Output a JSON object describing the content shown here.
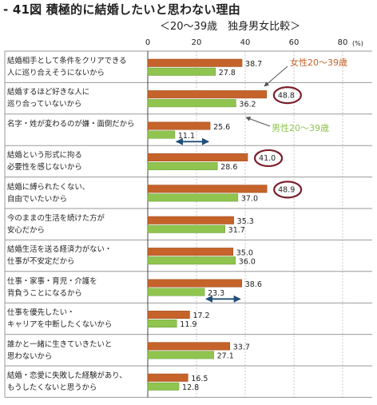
{
  "header": {
    "title": "- 41図 積極的に結婚したいと思わない理由",
    "subtitle": "＜20～39歳　独身男女比較＞"
  },
  "chart_data": {
    "type": "bar",
    "orientation": "horizontal",
    "axis_ticks": [
      "0",
      "20",
      "40",
      "60",
      "80"
    ],
    "unit_label": "(%)",
    "xlim": [
      0,
      80
    ],
    "grid": true,
    "categories": [
      "結婚相手として条件をクリアできる\n人に巡り合えそうにないから",
      "結婚するほど好きな人に\n巡り合っていないから",
      "名字・姓が変わるのが嫌・面倒だから",
      "結婚という形式に拘る\n必要性を感じないから",
      "結婚に縛られたくない、\n自由でいたいから",
      "今のままの生活を続けた方が\n安心だから",
      "結婚生活を送る経済力がない・\n仕事が不安定だから",
      "仕事・家事・育児・介護を\n背負うことになるから",
      "仕事を優先したい・\nキャリアを中断したくないから",
      "誰かと一緒に生きていきたいと\n思わないから",
      "結婚・恋愛に失敗した経験があり、\nもうしたくないと思うから"
    ],
    "series": [
      {
        "name": "女性20～39歳",
        "color": "#c5632a",
        "values": [
          38.7,
          48.8,
          25.6,
          41.0,
          48.9,
          35.3,
          35.0,
          38.6,
          17.2,
          33.7,
          16.5
        ],
        "labels": [
          "38.7",
          "48.8",
          "25.6",
          "41.0",
          "48.9",
          "35.3",
          "35.0",
          "38.6",
          "17.2",
          "33.7",
          "16.5"
        ]
      },
      {
        "name": "男性20～39歳",
        "color": "#8fc44f",
        "values": [
          27.8,
          36.2,
          11.1,
          28.6,
          37.0,
          31.7,
          36.0,
          23.3,
          11.9,
          27.1,
          12.8
        ],
        "labels": [
          "27.8",
          "36.2",
          "11.1",
          "28.6",
          "37.0",
          "31.7",
          "36.0",
          "23.3",
          "11.9",
          "27.1",
          "12.8"
        ]
      }
    ],
    "circled_values": [
      "48.8",
      "41.0",
      "48.9"
    ],
    "gap_arrows": [
      2,
      7
    ],
    "colors": {
      "emphasis_circle": "#7a1f2b",
      "gap_arrow": "#1f4e79",
      "grid": "#c8c8c8",
      "row_border": "#9a9a9a"
    }
  }
}
